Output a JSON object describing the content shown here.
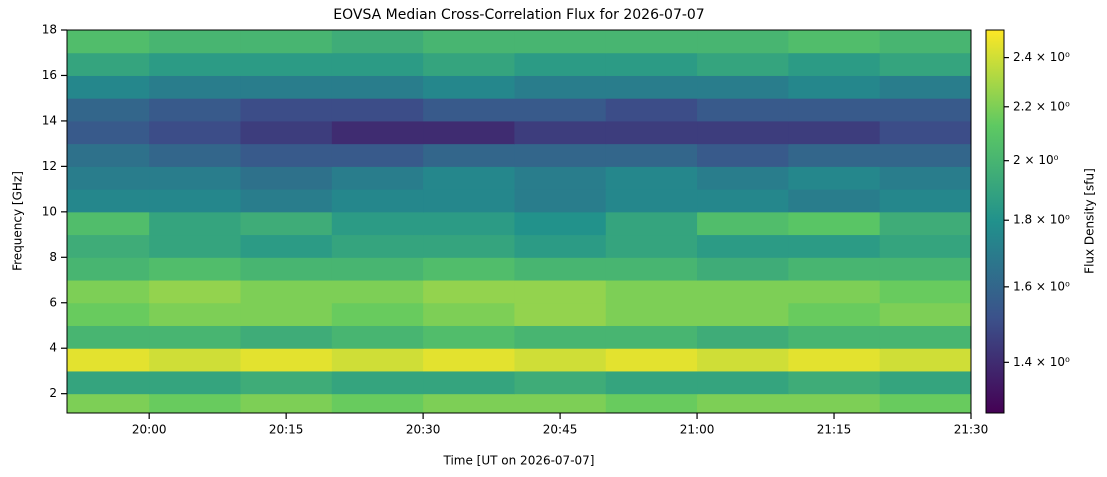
{
  "chart_data": {
    "type": "heatmap",
    "title": "EOVSA Median Cross-Correlation Flux for 2026-07-07",
    "x_label": "Time [UT on 2026-07-07]",
    "y_label": "Frequency [GHz]",
    "colorbar_label": "Flux Density [sfu]",
    "colormap": "viridis",
    "x": [
      "19:55",
      "20:05",
      "20:15",
      "20:25",
      "20:35",
      "20:45",
      "20:55",
      "21:05",
      "21:15",
      "21:25"
    ],
    "y": [
      1.5,
      2.5,
      3.5,
      4.5,
      5.5,
      6.5,
      7.5,
      8.5,
      9.5,
      10.5,
      11.5,
      12.5,
      13.5,
      14.5,
      15.5,
      16.5,
      17.5
    ],
    "z": [
      [
        2.2,
        2.15,
        2.2,
        2.15,
        2.2,
        2.2,
        2.15,
        2.2,
        2.2,
        2.15
      ],
      [
        1.9,
        1.9,
        1.95,
        1.9,
        1.9,
        1.95,
        1.9,
        1.9,
        1.95,
        1.9
      ],
      [
        2.45,
        2.4,
        2.45,
        2.4,
        2.45,
        2.4,
        2.45,
        2.4,
        2.45,
        2.4
      ],
      [
        2.0,
        2.0,
        1.95,
        2.0,
        2.05,
        2.0,
        2.0,
        1.95,
        2.0,
        2.0
      ],
      [
        2.15,
        2.2,
        2.2,
        2.15,
        2.2,
        2.25,
        2.2,
        2.2,
        2.15,
        2.2
      ],
      [
        2.2,
        2.25,
        2.2,
        2.2,
        2.25,
        2.25,
        2.2,
        2.2,
        2.2,
        2.15
      ],
      [
        2.0,
        2.05,
        2.0,
        2.0,
        2.05,
        2.0,
        2.0,
        1.95,
        2.0,
        2.0
      ],
      [
        1.95,
        1.9,
        1.85,
        1.9,
        1.9,
        1.85,
        1.9,
        1.85,
        1.85,
        1.9
      ],
      [
        2.05,
        1.9,
        1.95,
        1.85,
        1.85,
        1.8,
        1.9,
        2.05,
        2.1,
        1.95
      ],
      [
        1.75,
        1.75,
        1.7,
        1.75,
        1.75,
        1.7,
        1.75,
        1.75,
        1.7,
        1.75
      ],
      [
        1.7,
        1.7,
        1.65,
        1.7,
        1.75,
        1.7,
        1.75,
        1.7,
        1.75,
        1.7
      ],
      [
        1.65,
        1.6,
        1.55,
        1.55,
        1.6,
        1.6,
        1.6,
        1.55,
        1.6,
        1.6
      ],
      [
        1.55,
        1.5,
        1.45,
        1.4,
        1.4,
        1.45,
        1.45,
        1.45,
        1.45,
        1.5
      ],
      [
        1.6,
        1.55,
        1.5,
        1.5,
        1.55,
        1.55,
        1.5,
        1.55,
        1.55,
        1.55
      ],
      [
        1.75,
        1.7,
        1.7,
        1.7,
        1.75,
        1.7,
        1.7,
        1.7,
        1.75,
        1.7
      ],
      [
        1.9,
        1.85,
        1.85,
        1.85,
        1.9,
        1.85,
        1.85,
        1.9,
        1.85,
        1.9
      ],
      [
        2.05,
        2.0,
        2.0,
        1.95,
        2.0,
        2.0,
        2.0,
        2.0,
        2.05,
        2.0
      ]
    ],
    "xlim": [
      "19:51",
      "21:30"
    ],
    "xticks": [
      "20:00",
      "20:15",
      "20:30",
      "20:45",
      "21:00",
      "21:15",
      "21:30"
    ],
    "ylim": [
      1.15,
      18
    ],
    "yticks": [
      2,
      4,
      6,
      8,
      10,
      12,
      14,
      16,
      18
    ],
    "clim": [
      1.28,
      2.52
    ],
    "clog": true,
    "cticks": [
      {
        "value": 1.4,
        "label": "1.4 × 10⁰"
      },
      {
        "value": 1.6,
        "label": "1.6 × 10⁰"
      },
      {
        "value": 1.8,
        "label": "1.8 × 10⁰"
      },
      {
        "value": 2,
        "label": "2 × 10⁰"
      },
      {
        "value": 2.2,
        "label": "2.2 × 10⁰"
      },
      {
        "value": 2.4,
        "label": "2.4 × 10⁰"
      }
    ]
  }
}
